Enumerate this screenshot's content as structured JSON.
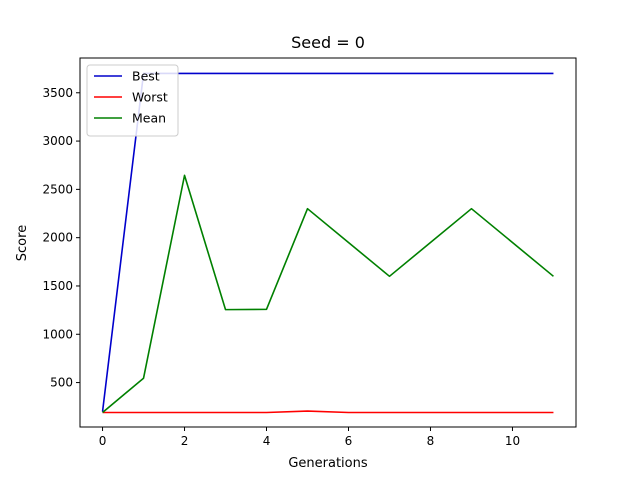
{
  "chart_data": {
    "type": "line",
    "title": "Seed = 0",
    "xlabel": "Generations",
    "ylabel": "Score",
    "x": [
      0,
      1,
      2,
      3,
      4,
      5,
      6,
      7,
      8,
      9,
      10,
      11
    ],
    "xlim": [
      -0.55,
      11.55
    ],
    "ylim": [
      40,
      3860
    ],
    "xticks": [
      0,
      2,
      4,
      6,
      8,
      10
    ],
    "yticks": [
      500,
      1000,
      1500,
      2000,
      2500,
      3000,
      3500
    ],
    "grid": false,
    "legend": "top-left",
    "series": [
      {
        "name": "Best",
        "color": "#0000cc",
        "values": [
          200,
          3700,
          3700,
          3700,
          3700,
          3700,
          3700,
          3700,
          3700,
          3700,
          3700,
          3700
        ]
      },
      {
        "name": "Worst",
        "color": "#ff0000",
        "values": [
          190,
          190,
          190,
          190,
          190,
          205,
          190,
          190,
          190,
          190,
          190,
          190
        ]
      },
      {
        "name": "Mean",
        "color": "#008000",
        "values": [
          190,
          545,
          2645,
          1255,
          1258,
          2300,
          1950,
          1600,
          1950,
          2300,
          1950,
          1600
        ]
      }
    ]
  }
}
